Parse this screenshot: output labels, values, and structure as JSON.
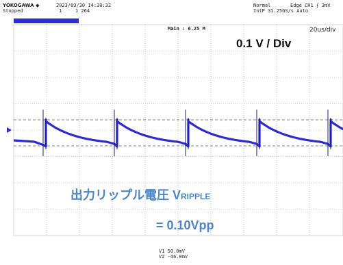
{
  "header": {
    "brand": "YOKOGAWA ◆",
    "timestamp": "2023/03/30 14:30:32",
    "state": "Stopped",
    "count": "1",
    "records": "1 264",
    "trigger_mode": "Normal",
    "trigger": "Edge CH1 ⨍ 3mV",
    "sample_rate": "IntP 31.25GS/s Auto",
    "main": "Main : 6.25 M",
    "time_div": "20us/div"
  },
  "annotations": {
    "volt_div": "0.1 V / Div",
    "ripple_label": "出力リップル電圧 V",
    "ripple_sub": "RIPPLE",
    "ripple_value": "= 0.10Vpp"
  },
  "footer": {
    "v1": "V1  50.0mV",
    "v2": "V2 -46.0mV"
  }
}
